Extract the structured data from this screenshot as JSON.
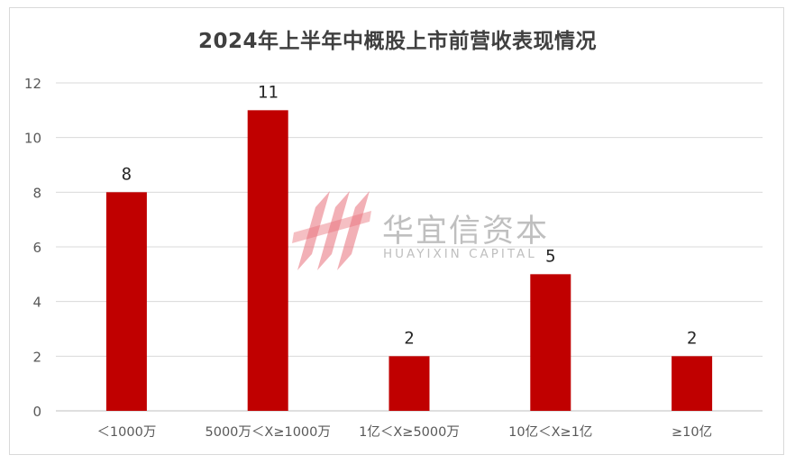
{
  "chart_data": {
    "type": "bar",
    "title": "2024年上半年中概股上市前营收表现情况",
    "categories": [
      "＜1000万",
      "5000万＜X≥1000万",
      "1亿＜X≥5000万",
      "10亿＜X≥1亿",
      "≥10亿"
    ],
    "values": [
      8,
      11,
      2,
      5,
      2
    ],
    "data_labels": [
      "8",
      "11",
      "2",
      "5",
      "2"
    ],
    "ylim": [
      0,
      12
    ],
    "yticks": [
      "0",
      "2",
      "4",
      "6",
      "8",
      "10",
      "12"
    ],
    "grid": true,
    "legend": "none",
    "bar_color": "#c00000",
    "grid_color": "#d9d9d9"
  },
  "watermark": {
    "cn": "华宜信资本",
    "en": "HUAYIXIN CAPITAL",
    "color": "#bfbfbf",
    "logo_color": "#e8707a"
  }
}
